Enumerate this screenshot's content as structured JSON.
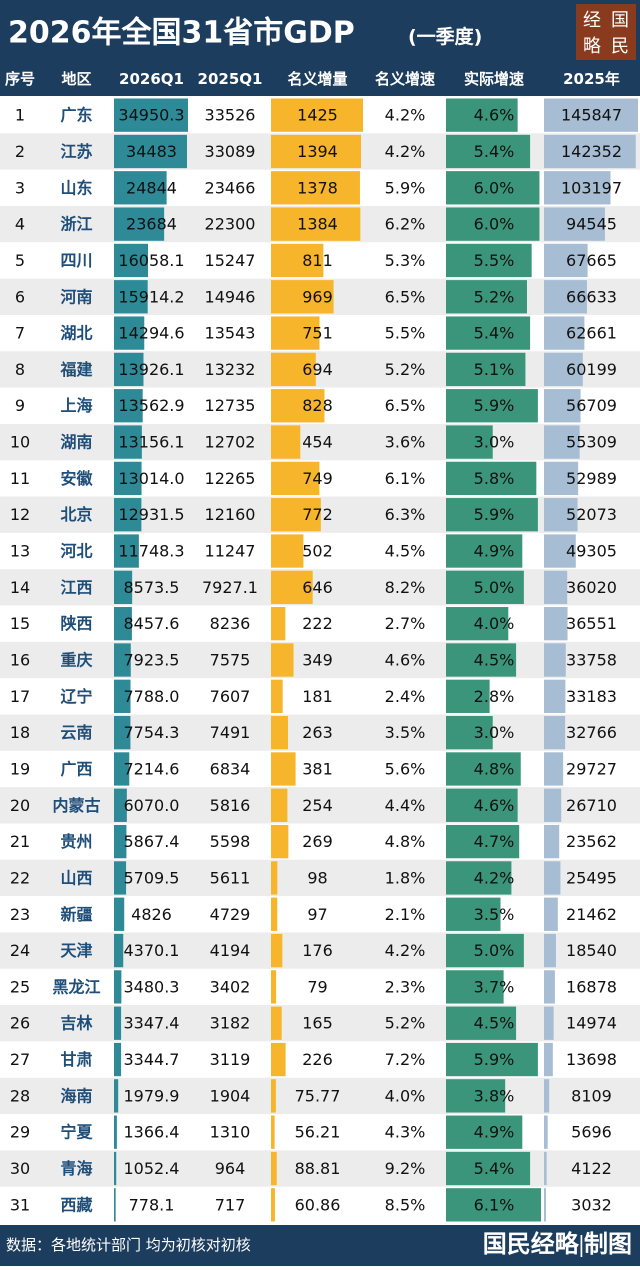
{
  "header": {
    "title": "2026年全国31省市GDP",
    "subtitle": "(一季度)",
    "logo": [
      "经",
      "国",
      "略",
      "民"
    ]
  },
  "table": {
    "headers": [
      "序号",
      "地区",
      "2026Q1",
      "2025Q1",
      "名义增量",
      "名义增速",
      "实际增速",
      "2025年"
    ],
    "rows": [
      [
        "1",
        "广东",
        "34950.3",
        "33526",
        "1425",
        "4.2%",
        "4.6%",
        "145847"
      ],
      [
        "2",
        "江苏",
        "34483",
        "33089",
        "1394",
        "4.2%",
        "5.4%",
        "142352"
      ],
      [
        "3",
        "山东",
        "24844",
        "23466",
        "1378",
        "5.9%",
        "6.0%",
        "103197"
      ],
      [
        "4",
        "浙江",
        "23684",
        "22300",
        "1384",
        "6.2%",
        "6.0%",
        "94545"
      ],
      [
        "5",
        "四川",
        "16058.1",
        "15247",
        "811",
        "5.3%",
        "5.5%",
        "67665"
      ],
      [
        "6",
        "河南",
        "15914.2",
        "14946",
        "969",
        "6.5%",
        "5.2%",
        "66633"
      ],
      [
        "7",
        "湖北",
        "14294.6",
        "13543",
        "751",
        "5.5%",
        "5.4%",
        "62661"
      ],
      [
        "8",
        "福建",
        "13926.1",
        "13232",
        "694",
        "5.2%",
        "5.1%",
        "60199"
      ],
      [
        "9",
        "上海",
        "13562.9",
        "12735",
        "828",
        "6.5%",
        "5.9%",
        "56709"
      ],
      [
        "10",
        "湖南",
        "13156.1",
        "12702",
        "454",
        "3.6%",
        "3.0%",
        "55309"
      ],
      [
        "11",
        "安徽",
        "13014.0",
        "12265",
        "749",
        "6.1%",
        "5.8%",
        "52989"
      ],
      [
        "12",
        "北京",
        "12931.5",
        "12160",
        "772",
        "6.3%",
        "5.9%",
        "52073"
      ],
      [
        "13",
        "河北",
        "11748.3",
        "11247",
        "502",
        "4.5%",
        "4.9%",
        "49305"
      ],
      [
        "14",
        "江西",
        "8573.5",
        "7927.1",
        "646",
        "8.2%",
        "5.0%",
        "36020"
      ],
      [
        "15",
        "陕西",
        "8457.6",
        "8236",
        "222",
        "2.7%",
        "4.0%",
        "36551"
      ],
      [
        "16",
        "重庆",
        "7923.5",
        "7575",
        "349",
        "4.6%",
        "4.5%",
        "33758"
      ],
      [
        "17",
        "辽宁",
        "7788.0",
        "7607",
        "181",
        "2.4%",
        "2.8%",
        "33183"
      ],
      [
        "18",
        "云南",
        "7754.3",
        "7491",
        "263",
        "3.5%",
        "3.0%",
        "32766"
      ],
      [
        "19",
        "广西",
        "7214.6",
        "6834",
        "381",
        "5.6%",
        "4.8%",
        "29727"
      ],
      [
        "20",
        "内蒙古",
        "6070.0",
        "5816",
        "254",
        "4.4%",
        "4.6%",
        "26710"
      ],
      [
        "21",
        "贵州",
        "5867.4",
        "5598",
        "269",
        "4.8%",
        "4.7%",
        "23562"
      ],
      [
        "22",
        "山西",
        "5709.5",
        "5611",
        "98",
        "1.8%",
        "4.2%",
        "25495"
      ],
      [
        "23",
        "新疆",
        "4826",
        "4729",
        "97",
        "2.1%",
        "3.5%",
        "21462"
      ],
      [
        "24",
        "天津",
        "4370.1",
        "4194",
        "176",
        "4.2%",
        "5.0%",
        "18540"
      ],
      [
        "25",
        "黑龙江",
        "3480.3",
        "3402",
        "79",
        "2.3%",
        "3.7%",
        "16878"
      ],
      [
        "26",
        "吉林",
        "3347.4",
        "3182",
        "165",
        "5.2%",
        "4.5%",
        "14974"
      ],
      [
        "27",
        "甘肃",
        "3344.7",
        "3119",
        "226",
        "7.2%",
        "5.9%",
        "13698"
      ],
      [
        "28",
        "海南",
        "1979.9",
        "1904",
        "75.77",
        "4.0%",
        "3.8%",
        "8109"
      ],
      [
        "29",
        "宁夏",
        "1366.4",
        "1310",
        "56.21",
        "4.3%",
        "4.9%",
        "5696"
      ],
      [
        "30",
        "青海",
        "1052.4",
        "964",
        "88.81",
        "9.2%",
        "5.4%",
        "4122"
      ],
      [
        "31",
        "西藏",
        "778.1",
        "717",
        "60.86",
        "8.5%",
        "6.1%",
        "3032"
      ]
    ]
  },
  "footer": {
    "source": "数据：各地统计部门  均为初核对初核",
    "brand": "国民经略|制图"
  }
}
